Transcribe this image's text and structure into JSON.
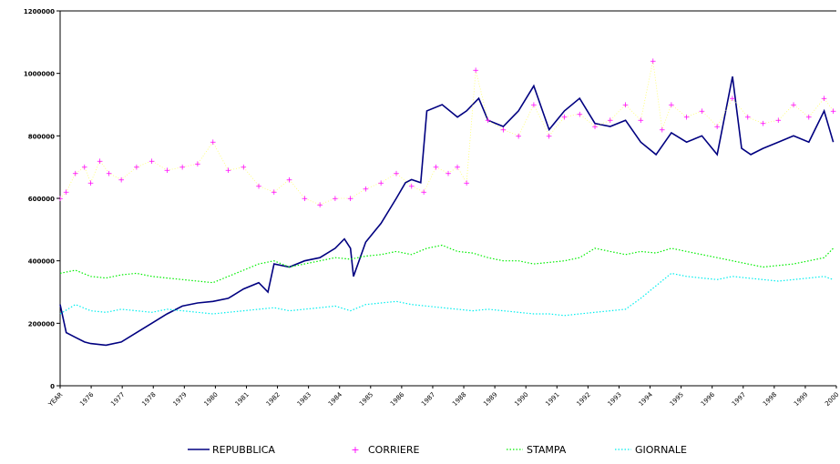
{
  "chart_data": {
    "type": "line",
    "ylim": [
      0,
      1200000
    ],
    "y_ticks": [
      0,
      200000,
      400000,
      600000,
      800000,
      1000000,
      1200000
    ],
    "y_tick_labels": [
      "0",
      "200000",
      "400000",
      "600000",
      "800000",
      "1000000",
      "1200000"
    ],
    "x_tick_labels": [
      "YEAR",
      "1976",
      "1977",
      "1978",
      "1979",
      "1980",
      "1981",
      "1982",
      "1983",
      "1984",
      "1985",
      "1986",
      "1987",
      "1988",
      "1989",
      "1990",
      "1991",
      "1992",
      "1993",
      "1994",
      "1995",
      "1996",
      "1997",
      "1998",
      "1999",
      "2000"
    ],
    "grid": false,
    "legend_position": "bottom",
    "series": [
      {
        "name": "REPUBBLICA",
        "color": "#000080",
        "style": "line",
        "x": [
          1975.0,
          1975.2,
          1975.5,
          1975.8,
          1976.0,
          1976.5,
          1977.0,
          1977.5,
          1978.0,
          1978.5,
          1979.0,
          1979.5,
          1980.0,
          1980.5,
          1981.0,
          1981.5,
          1981.8,
          1982.0,
          1982.5,
          1983.0,
          1983.5,
          1984.0,
          1984.3,
          1984.5,
          1984.6,
          1985.0,
          1985.5,
          1986.0,
          1986.3,
          1986.5,
          1986.8,
          1987.0,
          1987.5,
          1988.0,
          1988.3,
          1988.7,
          1989.0,
          1989.5,
          1990.0,
          1990.5,
          1991.0,
          1991.5,
          1992.0,
          1992.5,
          1993.0,
          1993.5,
          1994.0,
          1994.5,
          1995.0,
          1995.5,
          1996.0,
          1996.5,
          1997.0,
          1997.3,
          1997.6,
          1998.0,
          1998.5,
          1999.0,
          1999.5,
          2000.0,
          2000.3
        ],
        "values": [
          260000,
          170000,
          155000,
          140000,
          135000,
          130000,
          140000,
          170000,
          200000,
          230000,
          255000,
          265000,
          270000,
          280000,
          310000,
          330000,
          300000,
          390000,
          380000,
          400000,
          410000,
          440000,
          470000,
          440000,
          350000,
          460000,
          520000,
          600000,
          650000,
          660000,
          650000,
          880000,
          900000,
          860000,
          880000,
          920000,
          850000,
          830000,
          880000,
          960000,
          820000,
          880000,
          920000,
          840000,
          830000,
          850000,
          780000,
          740000,
          810000,
          780000,
          800000,
          740000,
          990000,
          760000,
          740000,
          760000,
          780000,
          800000,
          780000,
          880000,
          780000
        ]
      },
      {
        "name": "CORRIERE",
        "color": "#ff00ff",
        "style": "markers",
        "x": [
          1975.0,
          1975.2,
          1975.5,
          1975.8,
          1976.0,
          1976.3,
          1976.6,
          1977.0,
          1977.5,
          1978.0,
          1978.5,
          1979.0,
          1979.5,
          1980.0,
          1980.5,
          1981.0,
          1981.5,
          1982.0,
          1982.5,
          1983.0,
          1983.5,
          1984.0,
          1984.5,
          1985.0,
          1985.5,
          1986.0,
          1986.5,
          1986.9,
          1987.3,
          1987.7,
          1988.0,
          1988.3,
          1988.6,
          1989.0,
          1989.5,
          1990.0,
          1990.5,
          1991.0,
          1991.5,
          1992.0,
          1992.5,
          1993.0,
          1993.5,
          1994.0,
          1994.4,
          1994.7,
          1995.0,
          1995.5,
          1996.0,
          1996.5,
          1997.0,
          1997.5,
          1998.0,
          1998.5,
          1999.0,
          1999.5,
          2000.0,
          2000.3
        ],
        "values": [
          600000,
          620000,
          680000,
          700000,
          650000,
          720000,
          680000,
          660000,
          700000,
          720000,
          690000,
          700000,
          710000,
          780000,
          690000,
          700000,
          640000,
          620000,
          660000,
          600000,
          580000,
          600000,
          600000,
          630000,
          650000,
          680000,
          640000,
          620000,
          700000,
          680000,
          700000,
          650000,
          1010000,
          850000,
          820000,
          800000,
          900000,
          800000,
          860000,
          870000,
          830000,
          850000,
          900000,
          850000,
          1040000,
          820000,
          900000,
          860000,
          880000,
          830000,
          920000,
          860000,
          840000,
          850000,
          900000,
          860000,
          920000,
          880000
        ]
      },
      {
        "name": "STAMPA",
        "color": "#00ee00",
        "style": "dotted",
        "x": [
          1975.0,
          1975.5,
          1976.0,
          1976.5,
          1977.0,
          1977.5,
          1978.0,
          1978.5,
          1979.0,
          1979.5,
          1980.0,
          1980.5,
          1981.0,
          1981.5,
          1982.0,
          1982.5,
          1983.0,
          1983.5,
          1984.0,
          1984.5,
          1985.0,
          1985.5,
          1986.0,
          1986.5,
          1987.0,
          1987.5,
          1988.0,
          1988.5,
          1989.0,
          1989.5,
          1990.0,
          1990.5,
          1991.0,
          1991.5,
          1992.0,
          1992.5,
          1993.0,
          1993.5,
          1994.0,
          1994.5,
          1995.0,
          1995.5,
          1996.0,
          1996.5,
          1997.0,
          1997.5,
          1998.0,
          1998.5,
          1999.0,
          1999.5,
          2000.0,
          2000.3
        ],
        "values": [
          360000,
          370000,
          350000,
          345000,
          355000,
          360000,
          350000,
          345000,
          340000,
          335000,
          330000,
          350000,
          370000,
          390000,
          400000,
          380000,
          390000,
          400000,
          410000,
          405000,
          415000,
          420000,
          430000,
          420000,
          440000,
          450000,
          430000,
          425000,
          410000,
          400000,
          400000,
          390000,
          395000,
          400000,
          410000,
          440000,
          430000,
          420000,
          430000,
          425000,
          440000,
          430000,
          420000,
          410000,
          400000,
          390000,
          380000,
          385000,
          390000,
          400000,
          410000,
          440000
        ]
      },
      {
        "name": "GIORNALE",
        "color": "#00eeee",
        "style": "dotted",
        "x": [
          1975.0,
          1975.5,
          1976.0,
          1976.5,
          1977.0,
          1977.5,
          1978.0,
          1978.5,
          1979.0,
          1979.5,
          1980.0,
          1980.5,
          1981.0,
          1981.5,
          1982.0,
          1982.5,
          1983.0,
          1983.5,
          1984.0,
          1984.5,
          1985.0,
          1985.5,
          1986.0,
          1986.5,
          1987.0,
          1987.5,
          1988.0,
          1988.5,
          1989.0,
          1989.5,
          1990.0,
          1990.5,
          1991.0,
          1991.5,
          1992.0,
          1992.5,
          1993.0,
          1993.5,
          1994.0,
          1994.5,
          1995.0,
          1995.5,
          1996.0,
          1996.5,
          1997.0,
          1997.5,
          1998.0,
          1998.5,
          1999.0,
          1999.5,
          2000.0,
          2000.3
        ],
        "values": [
          230000,
          260000,
          240000,
          235000,
          245000,
          240000,
          235000,
          245000,
          240000,
          235000,
          230000,
          235000,
          240000,
          245000,
          250000,
          240000,
          245000,
          250000,
          255000,
          240000,
          260000,
          265000,
          270000,
          260000,
          255000,
          250000,
          245000,
          240000,
          245000,
          240000,
          235000,
          230000,
          230000,
          225000,
          230000,
          235000,
          240000,
          245000,
          280000,
          320000,
          360000,
          350000,
          345000,
          340000,
          350000,
          345000,
          340000,
          335000,
          340000,
          345000,
          350000,
          340000
        ]
      }
    ]
  }
}
